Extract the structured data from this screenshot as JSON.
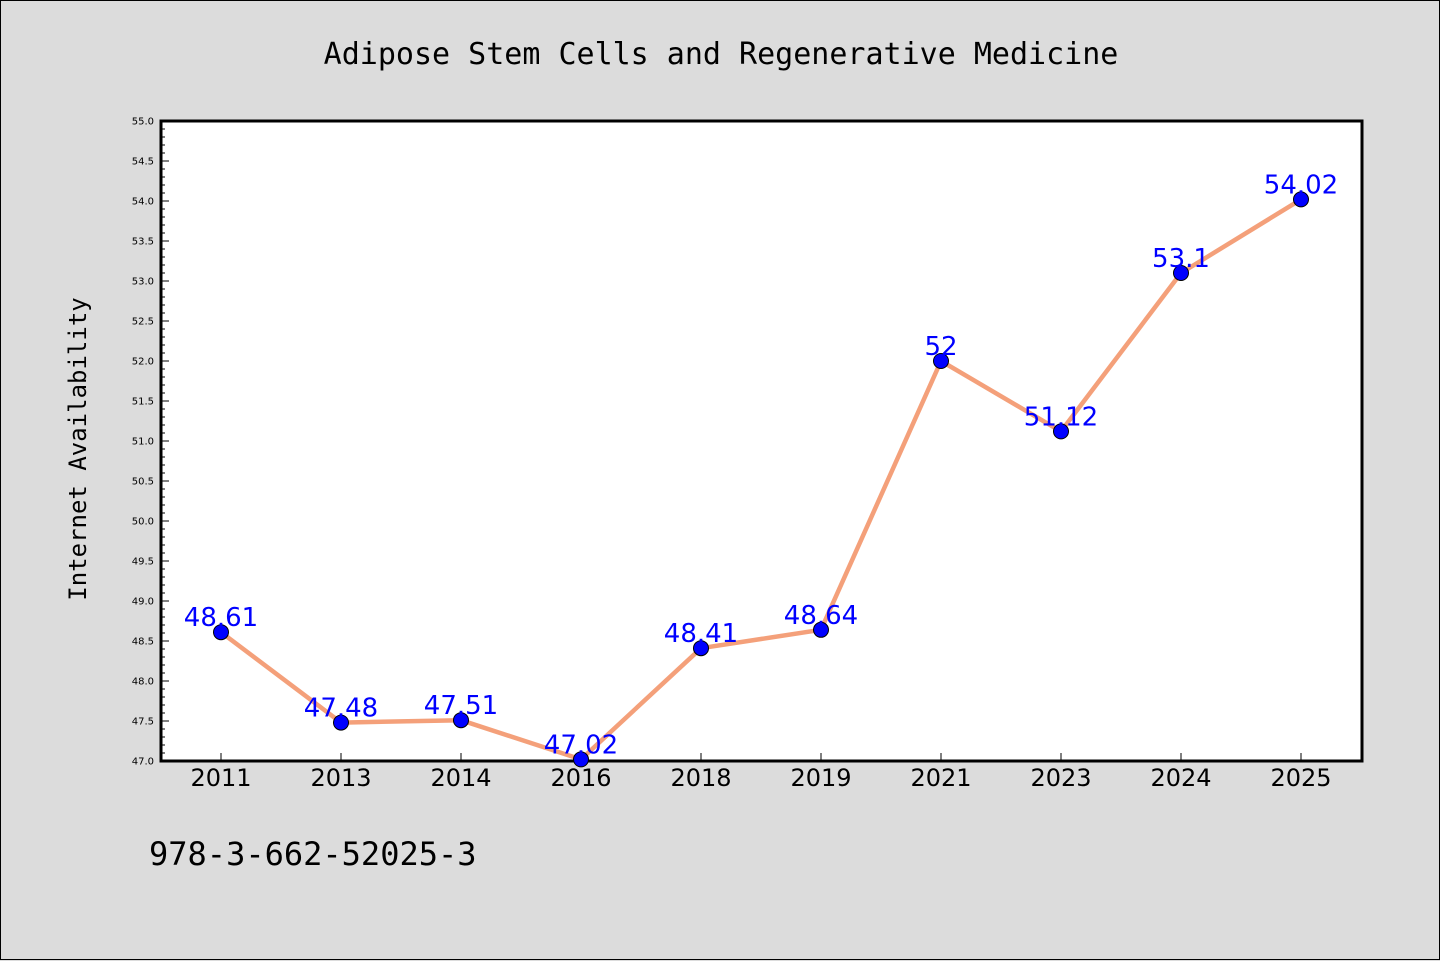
{
  "chart_data": {
    "type": "line",
    "title": "Adipose Stem Cells and Regenerative Medicine",
    "xlabel": "",
    "ylabel": "Internet Availability",
    "categories": [
      "2011",
      "2013",
      "2014",
      "2016",
      "2018",
      "2019",
      "2021",
      "2023",
      "2024",
      "2025"
    ],
    "values": [
      48.61,
      47.48,
      47.51,
      47.02,
      48.41,
      48.64,
      52,
      51.12,
      53.1,
      54.02
    ],
    "data_labels": [
      "48.61",
      "47.48",
      "47.51",
      "47.02",
      "48.41",
      "48.64",
      "52",
      "51.12",
      "53.1",
      "54.02"
    ],
    "ylim": [
      47.0,
      55.0
    ],
    "yticks": [
      "47.0",
      "47.5",
      "48.0",
      "48.5",
      "49.0",
      "49.5",
      "50.0",
      "50.5",
      "51.0",
      "51.5",
      "52.0",
      "52.5",
      "53.0",
      "53.5",
      "54.0",
      "54.5",
      "55.0"
    ],
    "grid": false,
    "legend": "none",
    "line_color": "#f4a07a",
    "marker_color": "#0000ff",
    "label_color": "#0000ff"
  },
  "footer": {
    "isbn": "978-3-662-52025-3"
  },
  "colors": {
    "background": "#dcdcdc",
    "plot_background": "#ffffff"
  }
}
